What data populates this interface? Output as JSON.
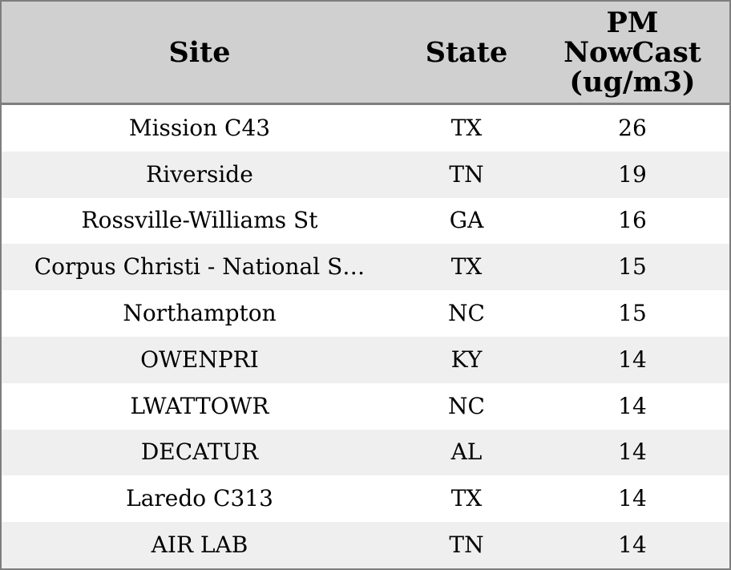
{
  "chart_data": {
    "type": "table",
    "columns": [
      "Site",
      "State",
      "PM NowCast (ug/m3)"
    ],
    "rows": [
      [
        "Mission C43",
        "TX",
        26
      ],
      [
        "Riverside",
        "TN",
        19
      ],
      [
        "Rossville-Williams St",
        "GA",
        16
      ],
      [
        "Corpus Christi - National S…",
        "TX",
        15
      ],
      [
        "Northampton",
        "NC",
        15
      ],
      [
        "OWENPRI",
        "KY",
        14
      ],
      [
        "LWATTOWR",
        "NC",
        14
      ],
      [
        "DECATUR",
        "AL",
        14
      ],
      [
        "Laredo C313",
        "TX",
        14
      ],
      [
        "AIR LAB",
        "TN",
        14
      ]
    ]
  },
  "header": {
    "site": "Site",
    "state": "State",
    "pm": "PM\nNowCast\n(ug/m3)"
  },
  "colors": {
    "border": "#7e7e7e",
    "header_bg": "#d0d0d0",
    "row_alt_bg": "#efefef",
    "row_bg": "#ffffff",
    "text": "#000000"
  }
}
